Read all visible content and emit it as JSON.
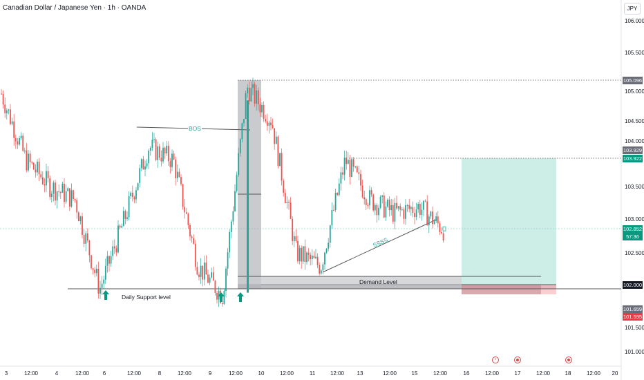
{
  "header": {
    "title": "Canadian Dollar / Japanese Yen · 1h · OANDA"
  },
  "price_axis": {
    "currency": "JPY",
    "ticks": [
      "106.000",
      "105.500",
      "105.000",
      "104.500",
      "104.000",
      "103.500",
      "103.000",
      "102.500",
      "102.000",
      "101.500",
      "101.000"
    ]
  },
  "price_tags": {
    "high": "105.096",
    "resistance_a": "103.929",
    "resistance_b": "103.922",
    "last_price": "102.852",
    "countdown": "57:36",
    "demand_top": "102.000",
    "support": "101.659",
    "stop": "101.595"
  },
  "time_axis": {
    "labels": [
      "3",
      "12:00",
      "4",
      "12:00",
      "6",
      "12:00",
      "8",
      "12:00",
      "9",
      "12:00",
      "10",
      "12:00",
      "11",
      "12:00",
      "13",
      "12:00",
      "15",
      "12:00",
      "16",
      "12:00",
      "17",
      "12:00",
      "18",
      "12:00",
      "20"
    ]
  },
  "annotations": {
    "bos": "BOS",
    "ssss": "SSSS",
    "demand_level": "Demand Level",
    "daily_support": "Daily Support level"
  },
  "icons": {
    "support_arrows": [
      "up-arrow-icon",
      "up-arrow-icon",
      "up-arrow-icon"
    ],
    "events": [
      "radio-event-icon",
      "target-event-icon",
      "target-event-icon"
    ]
  },
  "colors": {
    "bull": "#26a69a",
    "bear": "#ef5350",
    "arrow": "#089981",
    "tag_gray": "#6a6d78",
    "tag_teal": "#089981",
    "tag_red": "#f23645",
    "tag_dark": "#131722"
  },
  "chart_data": {
    "type": "candlestick",
    "symbol": "Canadian Dollar / Japanese Yen",
    "interval": "1h",
    "ylim": [
      101.0,
      106.0
    ],
    "last_price": 102.852,
    "levels": {
      "swing_high": 105.096,
      "resistance": [
        103.929,
        103.922
      ],
      "demand_zone": [
        101.659,
        102.0
      ],
      "daily_support": 101.659,
      "stop": 101.595
    },
    "price_path": [
      [
        "3",
        104.9
      ],
      [
        "3 12:00",
        103.9
      ],
      [
        "4",
        103.5
      ],
      [
        "4 12:00",
        103.3
      ],
      [
        "6",
        101.95
      ],
      [
        "6 12:00",
        103.0
      ],
      [
        "8",
        104.1
      ],
      [
        "8 12:00",
        103.9
      ],
      [
        "9",
        102.3
      ],
      [
        "9 12:00",
        101.85
      ],
      [
        "10",
        105.0
      ],
      [
        "10 12:00",
        104.5
      ],
      [
        "11",
        102.5
      ],
      [
        "11 12:00",
        102.3
      ],
      [
        "13",
        103.9
      ],
      [
        "13 12:00",
        103.3
      ],
      [
        "15",
        103.1
      ],
      [
        "15 12:00",
        103.2
      ],
      [
        "",
        102.85
      ]
    ]
  }
}
